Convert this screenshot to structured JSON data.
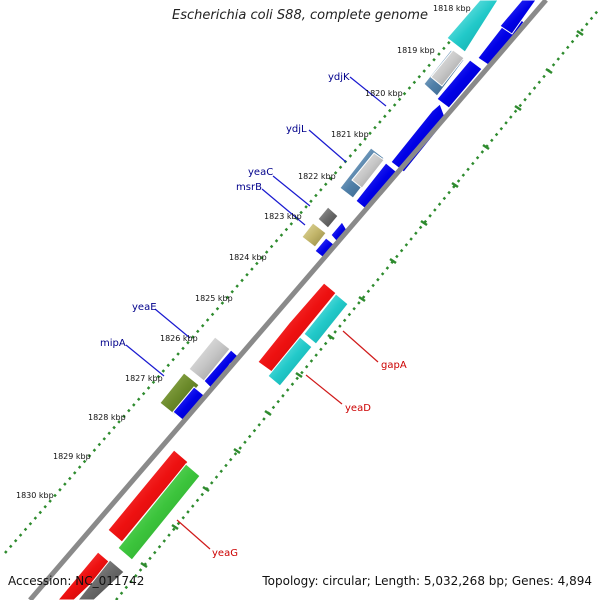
{
  "map": {
    "title": "Escherichia coli S88, complete genome",
    "accession": "Accession: NC_011742",
    "summary": "Topology: circular; Length: 5,032,268 bp; Genes: 4,894",
    "colors": {
      "backbone": "#8a8a8a",
      "tick_ring": "#2e8b2e",
      "plus_label": "#00008b",
      "minus_label": "#cc0000",
      "leader_plus": "#1a1ad0",
      "leader_minus": "#d01a1a"
    },
    "kbp_ticks": [
      "1818 kbp",
      "1819 kbp",
      "1820 kbp",
      "1821 kbp",
      "1822 kbp",
      "1823 kbp",
      "1824 kbp",
      "1825 kbp",
      "1826 kbp",
      "1827 kbp",
      "1828 kbp",
      "1829 kbp",
      "1830 kbp"
    ],
    "gene_labels_plus": [
      "ydjK",
      "ydjL",
      "yeaC",
      "msrB",
      "yeaE",
      "mipA"
    ],
    "gene_labels_minus": [
      "gapA",
      "yeaD",
      "yeaG"
    ]
  }
}
